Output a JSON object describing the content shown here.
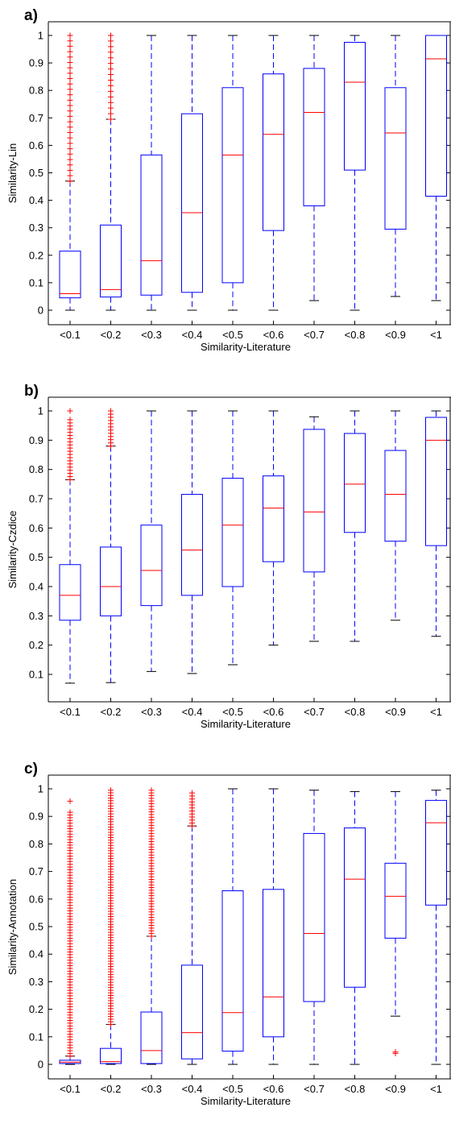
{
  "chart_data": [
    {
      "type": "box",
      "panel_label": "a)",
      "xlabel": "Similarity-Literature",
      "ylabel": "Similarity-Lin",
      "ylim": [
        0,
        1.0
      ],
      "yticks": [
        "0",
        "0.1",
        "0.2",
        "0.3",
        "0.4",
        "0.5",
        "0.6",
        "0.7",
        "0.8",
        "0.9",
        "1"
      ],
      "categories": [
        "<0.1",
        "<0.2",
        "<0.3",
        "<0.4",
        "<0.5",
        "<0.6",
        "<0.7",
        "<0.8",
        "<0.9",
        "<1"
      ],
      "boxes": [
        {
          "whisker_low": 0.0,
          "q1": 0.045,
          "median": 0.06,
          "q3": 0.215,
          "whisker_high": 0.47,
          "outlier_range": [
            0.47,
            1.0
          ],
          "outlier_count": 28
        },
        {
          "whisker_low": 0.0,
          "q1": 0.048,
          "median": 0.075,
          "q3": 0.31,
          "whisker_high": 0.695,
          "outlier_range": [
            0.695,
            1.0
          ],
          "outlier_count": 16
        },
        {
          "whisker_low": 0.0,
          "q1": 0.055,
          "median": 0.18,
          "q3": 0.565,
          "whisker_high": 1.0
        },
        {
          "whisker_low": 0.0,
          "q1": 0.065,
          "median": 0.355,
          "q3": 0.715,
          "whisker_high": 1.0
        },
        {
          "whisker_low": 0.0,
          "q1": 0.1,
          "median": 0.565,
          "q3": 0.81,
          "whisker_high": 1.0
        },
        {
          "whisker_low": 0.0,
          "q1": 0.29,
          "median": 0.64,
          "q3": 0.86,
          "whisker_high": 1.0
        },
        {
          "whisker_low": 0.035,
          "q1": 0.38,
          "median": 0.72,
          "q3": 0.88,
          "whisker_high": 1.0
        },
        {
          "whisker_low": 0.0,
          "q1": 0.51,
          "median": 0.83,
          "q3": 0.975,
          "whisker_high": 1.0
        },
        {
          "whisker_low": 0.05,
          "q1": 0.295,
          "median": 0.645,
          "q3": 0.81,
          "whisker_high": 1.0
        },
        {
          "whisker_low": 0.035,
          "q1": 0.415,
          "median": 0.915,
          "q3": 1.0,
          "whisker_high": 1.0
        }
      ]
    },
    {
      "type": "box",
      "panel_label": "b)",
      "xlabel": "Similarity-Literature",
      "ylabel": "Similarity-Czdice",
      "ylim": [
        0.05,
        1.0
      ],
      "yticks": [
        "0.1",
        "0.2",
        "0.3",
        "0.4",
        "0.5",
        "0.6",
        "0.7",
        "0.8",
        "0.9",
        "1"
      ],
      "categories": [
        "<0.1",
        "<0.2",
        "<0.3",
        "<0.4",
        "<0.5",
        "<0.6",
        "<0.7",
        "<0.8",
        "<0.9",
        "<1"
      ],
      "boxes": [
        {
          "whisker_low": 0.07,
          "q1": 0.285,
          "median": 0.37,
          "q3": 0.475,
          "whisker_high": 0.765,
          "outlier_range": [
            0.765,
            0.97
          ],
          "outlier_count": 20,
          "extra_outliers": [
            1.0
          ]
        },
        {
          "whisker_low": 0.072,
          "q1": 0.3,
          "median": 0.4,
          "q3": 0.535,
          "whisker_high": 0.88,
          "outlier_range": [
            0.88,
            1.0
          ],
          "outlier_count": 12
        },
        {
          "whisker_low": 0.11,
          "q1": 0.335,
          "median": 0.455,
          "q3": 0.61,
          "whisker_high": 1.0
        },
        {
          "whisker_low": 0.103,
          "q1": 0.37,
          "median": 0.525,
          "q3": 0.715,
          "whisker_high": 1.0
        },
        {
          "whisker_low": 0.133,
          "q1": 0.4,
          "median": 0.61,
          "q3": 0.77,
          "whisker_high": 1.0
        },
        {
          "whisker_low": 0.2,
          "q1": 0.485,
          "median": 0.668,
          "q3": 0.778,
          "whisker_high": 1.0
        },
        {
          "whisker_low": 0.213,
          "q1": 0.45,
          "median": 0.655,
          "q3": 0.937,
          "whisker_high": 0.98
        },
        {
          "whisker_low": 0.213,
          "q1": 0.585,
          "median": 0.75,
          "q3": 0.923,
          "whisker_high": 1.0
        },
        {
          "whisker_low": 0.285,
          "q1": 0.555,
          "median": 0.715,
          "q3": 0.865,
          "whisker_high": 1.0
        },
        {
          "whisker_low": 0.23,
          "q1": 0.54,
          "median": 0.9,
          "q3": 0.978,
          "whisker_high": 1.0
        }
      ]
    },
    {
      "type": "box",
      "panel_label": "c)",
      "xlabel": "Similarity-Literature",
      "ylabel": "Similarity-Annotation",
      "ylim": [
        0,
        1.0
      ],
      "yticks": [
        "0",
        "0.1",
        "0.2",
        "0.3",
        "0.4",
        "0.5",
        "0.6",
        "0.7",
        "0.8",
        "0.9",
        "1"
      ],
      "categories": [
        "<0.1",
        "<0.2",
        "<0.3",
        "<0.4",
        "<0.5",
        "<0.6",
        "<0.7",
        "<0.8",
        "<0.9",
        "<1"
      ],
      "boxes": [
        {
          "whisker_low": 0.0,
          "q1": 0.003,
          "median": 0.008,
          "q3": 0.015,
          "whisker_high": 0.03,
          "outlier_range": [
            0.03,
            0.915
          ],
          "outlier_count": 90,
          "extra_outliers": [
            0.955
          ]
        },
        {
          "whisker_low": 0.0,
          "q1": 0.003,
          "median": 0.01,
          "q3": 0.058,
          "whisker_high": 0.145,
          "outlier_range": [
            0.145,
            0.995
          ],
          "outlier_count": 90
        },
        {
          "whisker_low": 0.0,
          "q1": 0.003,
          "median": 0.05,
          "q3": 0.19,
          "whisker_high": 0.465,
          "outlier_range": [
            0.465,
            0.995
          ],
          "outlier_count": 55
        },
        {
          "whisker_low": 0.0,
          "q1": 0.02,
          "median": 0.115,
          "q3": 0.36,
          "whisker_high": 0.865,
          "outlier_range": [
            0.865,
            0.985
          ],
          "outlier_count": 12
        },
        {
          "whisker_low": 0.0,
          "q1": 0.048,
          "median": 0.188,
          "q3": 0.63,
          "whisker_high": 1.0
        },
        {
          "whisker_low": 0.0,
          "q1": 0.1,
          "median": 0.245,
          "q3": 0.635,
          "whisker_high": 1.0
        },
        {
          "whisker_low": 0.0,
          "q1": 0.228,
          "median": 0.475,
          "q3": 0.838,
          "whisker_high": 0.995
        },
        {
          "whisker_low": 0.0,
          "q1": 0.28,
          "median": 0.672,
          "q3": 0.858,
          "whisker_high": 0.99
        },
        {
          "whisker_low": 0.175,
          "q1": 0.458,
          "median": 0.61,
          "q3": 0.73,
          "whisker_high": 0.99,
          "extra_outliers": [
            0.045,
            0.04
          ]
        },
        {
          "whisker_low": 0.0,
          "q1": 0.578,
          "median": 0.877,
          "q3": 0.958,
          "whisker_high": 0.995
        }
      ]
    }
  ],
  "colors": {
    "box": "#0000ff",
    "median": "#ff0000",
    "whisker": "#0000ff",
    "outlier": "#ff0000",
    "axis": "#000000"
  }
}
